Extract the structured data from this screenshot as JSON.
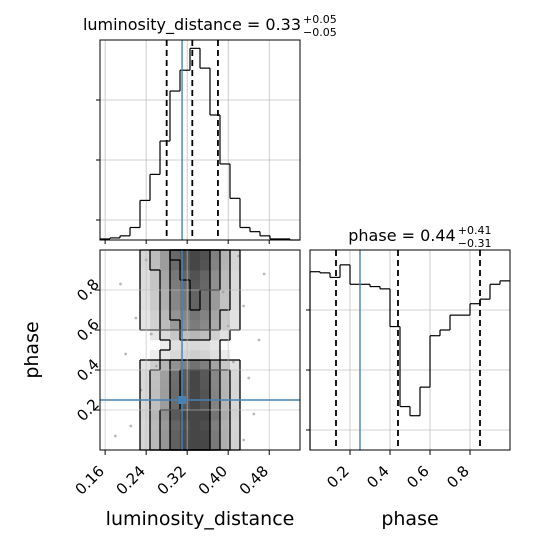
{
  "chart_data": {
    "type": "corner",
    "colors": {
      "truth": "#4682b4",
      "hist": "#000000",
      "grid": "#c0c0c0",
      "scatter": "#9a9a9a"
    },
    "titles": {
      "lum": {
        "text": "luminosity_distance = 0.33",
        "plus": "+0.05",
        "minus": "−0.05"
      },
      "phase": {
        "text": "phase = 0.44",
        "plus": "+0.41",
        "minus": "−0.31"
      }
    },
    "axes": {
      "lum": {
        "label": "luminosity_distance",
        "range": [
          0.15,
          0.54
        ],
        "ticks": [
          0.16,
          0.24,
          0.32,
          0.4,
          0.48
        ],
        "tick_labels": [
          "0.16",
          "0.24",
          "0.32",
          "0.40",
          "0.48"
        ]
      },
      "phase": {
        "label": "phase",
        "range": [
          0.0,
          1.0
        ],
        "ticks": [
          0.2,
          0.4,
          0.6,
          0.8
        ],
        "tick_labels": [
          "0.2",
          "0.4",
          "0.6",
          "0.8"
        ]
      }
    },
    "truth": {
      "lum": 0.31,
      "phase": 0.25
    },
    "hist_lum": {
      "edges": [
        0.15,
        0.1695,
        0.189,
        0.2085,
        0.228,
        0.2475,
        0.267,
        0.2865,
        0.306,
        0.3255,
        0.345,
        0.3645,
        0.384,
        0.4035,
        0.423,
        0.4425,
        0.462,
        0.4815,
        0.501,
        0.5205,
        0.54
      ],
      "counts": [
        1,
        2,
        4,
        12,
        38,
        63,
        95,
        143,
        163,
        184,
        165,
        120,
        73,
        40,
        12,
        8,
        4,
        1,
        1,
        0
      ],
      "quantiles": [
        0.28,
        0.33,
        0.38
      ],
      "ymax": 192
    },
    "hist_phase": {
      "edges": [
        0.0,
        0.05,
        0.1,
        0.15,
        0.2,
        0.25,
        0.3,
        0.35,
        0.4,
        0.45,
        0.5,
        0.55,
        0.6,
        0.65,
        0.7,
        0.75,
        0.8,
        0.85,
        0.9,
        0.95,
        1.0
      ],
      "counts": [
        156,
        155,
        151,
        162,
        145,
        145,
        143,
        141,
        108,
        38,
        30,
        55,
        100,
        105,
        118,
        118,
        128,
        132,
        145,
        148
      ],
      "quantiles": [
        0.13,
        0.44,
        0.85
      ],
      "ymax": 175
    },
    "density_2d": {
      "x_edges": [
        0.15,
        0.1695,
        0.189,
        0.2085,
        0.228,
        0.2475,
        0.267,
        0.2865,
        0.306,
        0.3255,
        0.345,
        0.3645,
        0.384,
        0.4035,
        0.423,
        0.4425,
        0.462,
        0.4815,
        0.501,
        0.5205,
        0.54
      ],
      "y_edges": [
        0.0,
        0.05,
        0.1,
        0.15,
        0.2,
        0.25,
        0.3,
        0.35,
        0.4,
        0.45,
        0.5,
        0.55,
        0.6,
        0.65,
        0.7,
        0.75,
        0.8,
        0.85,
        0.9,
        0.95,
        1.0
      ],
      "levels": [
        0.12,
        0.28,
        0.48,
        0.7
      ],
      "noise_points": [
        [
          0.18,
          0.07
        ],
        [
          0.21,
          0.12
        ],
        [
          0.23,
          0.3
        ],
        [
          0.2,
          0.48
        ],
        [
          0.22,
          0.66
        ],
        [
          0.19,
          0.83
        ],
        [
          0.24,
          0.95
        ],
        [
          0.43,
          0.05
        ],
        [
          0.45,
          0.18
        ],
        [
          0.44,
          0.36
        ],
        [
          0.46,
          0.55
        ],
        [
          0.43,
          0.72
        ],
        [
          0.47,
          0.88
        ],
        [
          0.42,
          0.97
        ],
        [
          0.26,
          0.42
        ],
        [
          0.25,
          0.58
        ],
        [
          0.41,
          0.44
        ],
        [
          0.4,
          0.62
        ],
        [
          0.27,
          0.21
        ],
        [
          0.39,
          0.79
        ]
      ]
    }
  }
}
